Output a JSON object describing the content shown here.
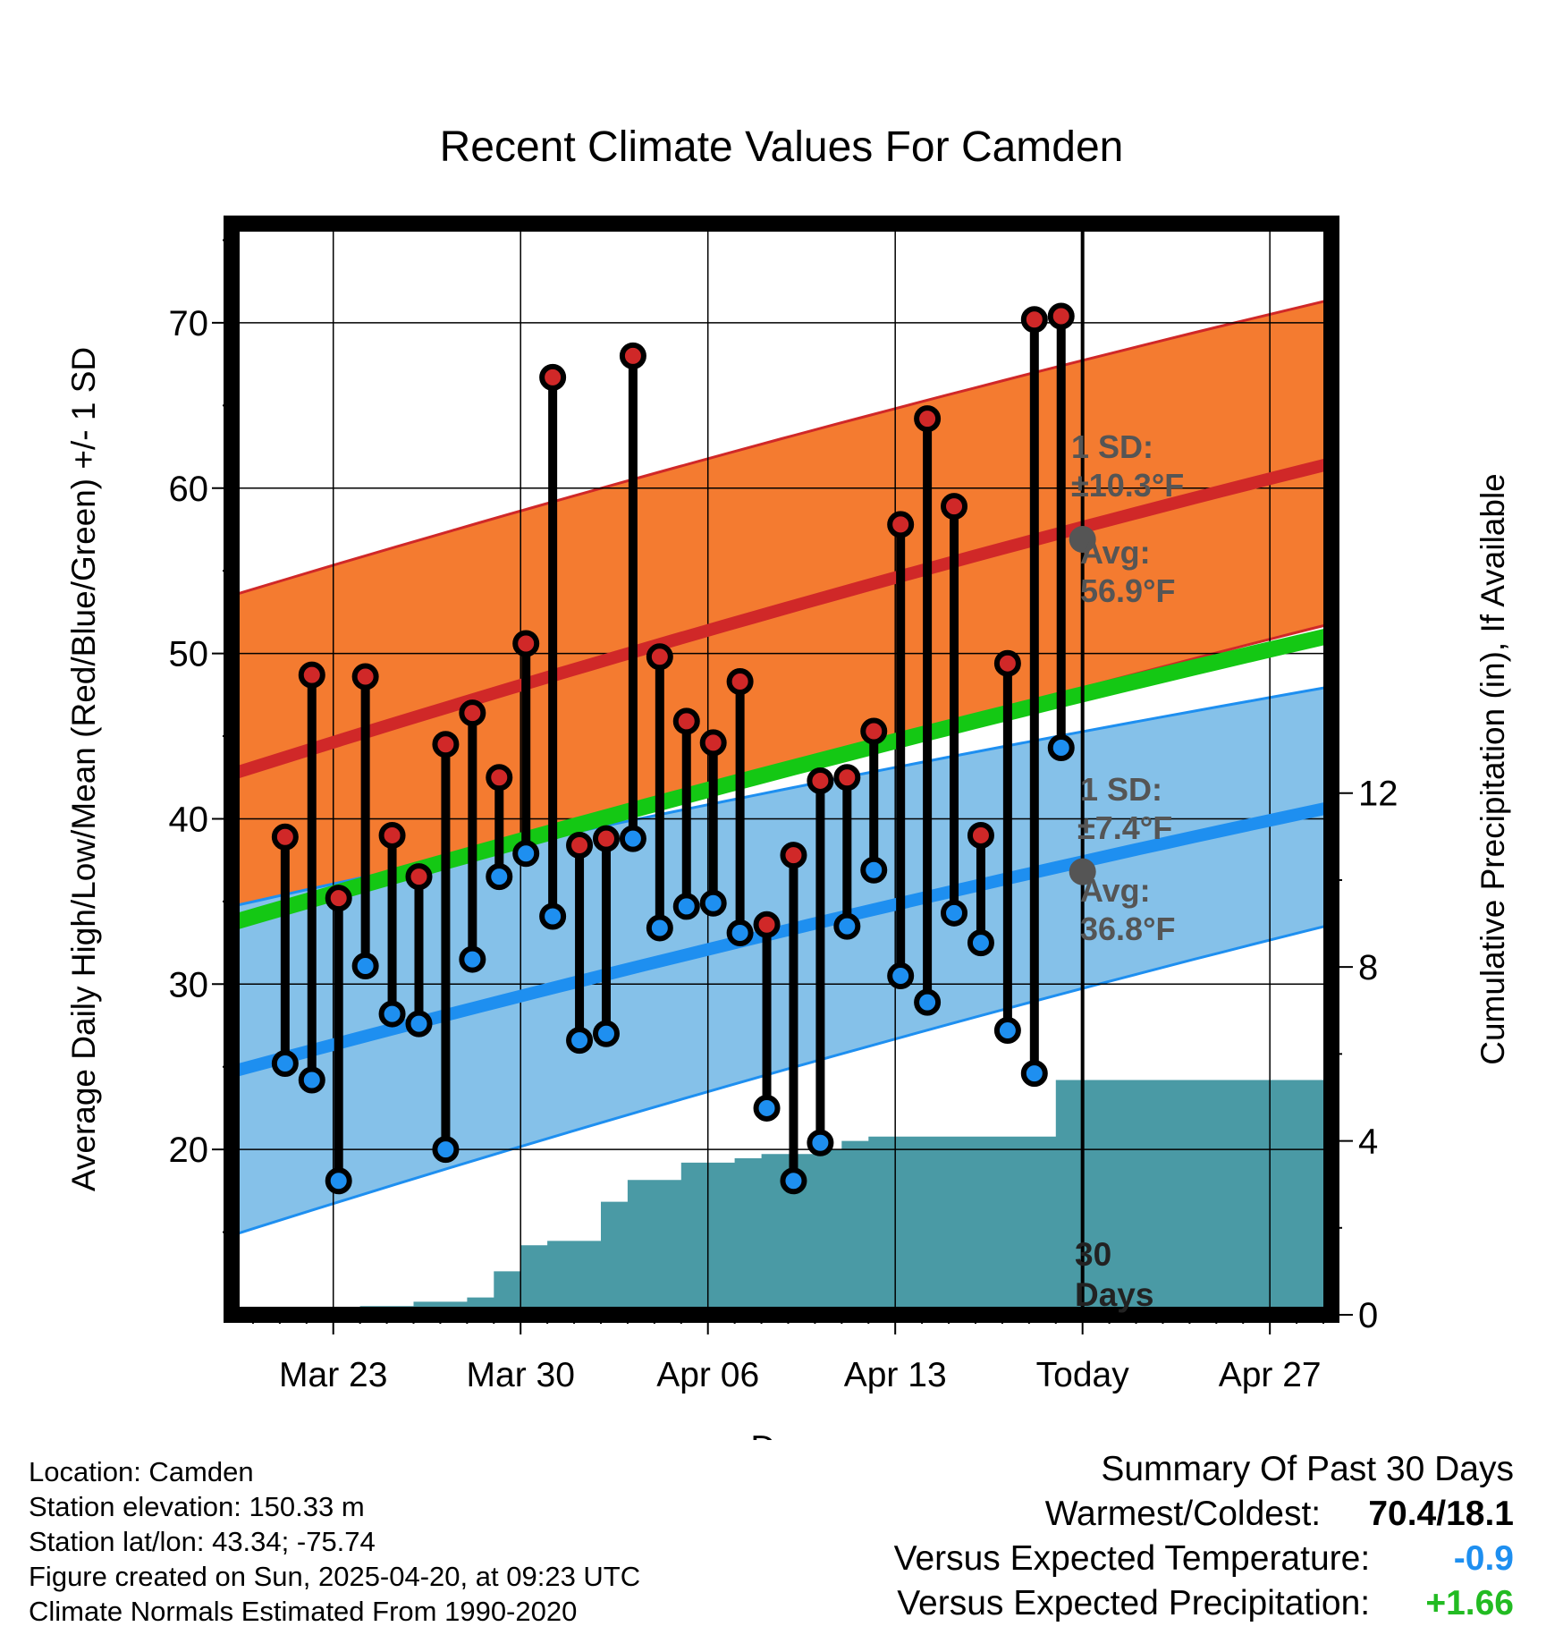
{
  "chart_data": {
    "type": "line",
    "title": "Recent Climate Values For Camden",
    "xlabel": "Day",
    "ylabel": "Average Daily High/Low/Mean (Red/Blue/Green) +/- 1 SD",
    "y2label": "Cumulative Precipitation (in), If Available",
    "x_tick_labels": [
      "Mar 23",
      "Mar 30",
      "Apr 06",
      "Apr 13",
      "Today",
      "Apr 27"
    ],
    "x_tick_days": [
      2,
      9,
      16,
      23,
      30,
      37
    ],
    "y_ticks": [
      20,
      30,
      40,
      50,
      60,
      70
    ],
    "y_range": [
      10,
      76
    ],
    "y2_ticks": [
      0,
      4,
      8,
      12
    ],
    "y2_range": [
      0,
      25.1
    ],
    "x_range": [
      -1.8,
      39.3
    ],
    "today_label": "30 Days",
    "normal_high": {
      "start": 42.7,
      "end": 61.5,
      "sd_text": "1 SD:",
      "sd_value": "±10.3°F",
      "avg_label": "Avg:",
      "avg_value": "56.9°F",
      "today_avg": 56.9
    },
    "normal_low": {
      "start": 24.7,
      "end": 40.7,
      "sd_text": "1 SD:",
      "sd_value": "±7.4°F",
      "avg_label": "Avg:",
      "avg_value": "36.8°F",
      "today_avg": 36.8
    },
    "normal_mean": {
      "start": 33.7,
      "end": 51.1
    },
    "high_band": {
      "upper_start": 53.5,
      "upper_end": 71.4,
      "lower_start": 32.9,
      "lower_end": 51.8
    },
    "low_band": {
      "upper_start": 34.7,
      "upper_end": 48.0,
      "lower_start": 14.8,
      "lower_end": 33.6
    },
    "daily": [
      {
        "high": 38.9,
        "low": 25.2
      },
      {
        "high": 48.7,
        "low": 24.2
      },
      {
        "high": 35.2,
        "low": 18.1
      },
      {
        "high": 48.6,
        "low": 31.1
      },
      {
        "high": 39.0,
        "low": 28.2
      },
      {
        "high": 36.5,
        "low": 27.6
      },
      {
        "high": 44.5,
        "low": 20.0
      },
      {
        "high": 46.4,
        "low": 31.5
      },
      {
        "high": 42.5,
        "low": 36.5
      },
      {
        "high": 50.6,
        "low": 37.9
      },
      {
        "high": 66.7,
        "low": 34.1
      },
      {
        "high": 38.4,
        "low": 26.6
      },
      {
        "high": 38.8,
        "low": 27.0
      },
      {
        "high": 68.0,
        "low": 38.8
      },
      {
        "high": 49.8,
        "low": 33.4
      },
      {
        "high": 45.9,
        "low": 34.7
      },
      {
        "high": 44.6,
        "low": 34.9
      },
      {
        "high": 48.3,
        "low": 33.1
      },
      {
        "high": 33.6,
        "low": 22.5
      },
      {
        "high": 37.8,
        "low": 18.1
      },
      {
        "high": 42.3,
        "low": 20.4
      },
      {
        "high": 42.5,
        "low": 33.5
      },
      {
        "high": 45.3,
        "low": 36.9
      },
      {
        "high": 57.8,
        "low": 30.5
      },
      {
        "high": 64.2,
        "low": 28.9
      },
      {
        "high": 58.9,
        "low": 34.3
      },
      {
        "high": 39.0,
        "low": 32.5
      },
      {
        "high": 49.4,
        "low": 27.2
      },
      {
        "high": 70.2,
        "low": 24.6
      },
      {
        "high": 70.4,
        "low": 44.3
      }
    ],
    "precip_cumulative": [
      0,
      0,
      0,
      0.2,
      0.2,
      0.3,
      0.3,
      0.4,
      1.0,
      1.6,
      1.7,
      1.7,
      2.6,
      3.1,
      3.1,
      3.5,
      3.5,
      3.6,
      3.7,
      3.7,
      3.8,
      4.0,
      4.1,
      4.1,
      4.1,
      4.1,
      4.1,
      4.1,
      4.1,
      5.4,
      5.4
    ]
  },
  "colors": {
    "high_band": "#f47b30",
    "high_line": "#d02828",
    "low_band": "#85c1e9",
    "low_line": "#1e8ff0",
    "mean_line": "#14c814",
    "precip": "#4a9aa5",
    "annot": "#555555",
    "temp_vs": "#1e8ff0",
    "precip_vs": "#22bb22"
  },
  "info": {
    "location": "Location: Camden",
    "elevation": "Station elevation: 150.33 m",
    "latlon": "Station lat/lon: 43.34; -75.74",
    "created": "Figure created on Sun, 2025-04-20, at 09:23 UTC",
    "normals": "Climate Normals Estimated From 1990-2020"
  },
  "summary": {
    "title": "Summary Of Past 30 Days",
    "warm_label": "Warmest/Coldest:",
    "warm_value": "70.4/18.1",
    "temp_label": "Versus Expected Temperature:",
    "temp_value": "-0.9",
    "precip_label": "Versus Expected Precipitation:",
    "precip_value": "+1.66"
  }
}
